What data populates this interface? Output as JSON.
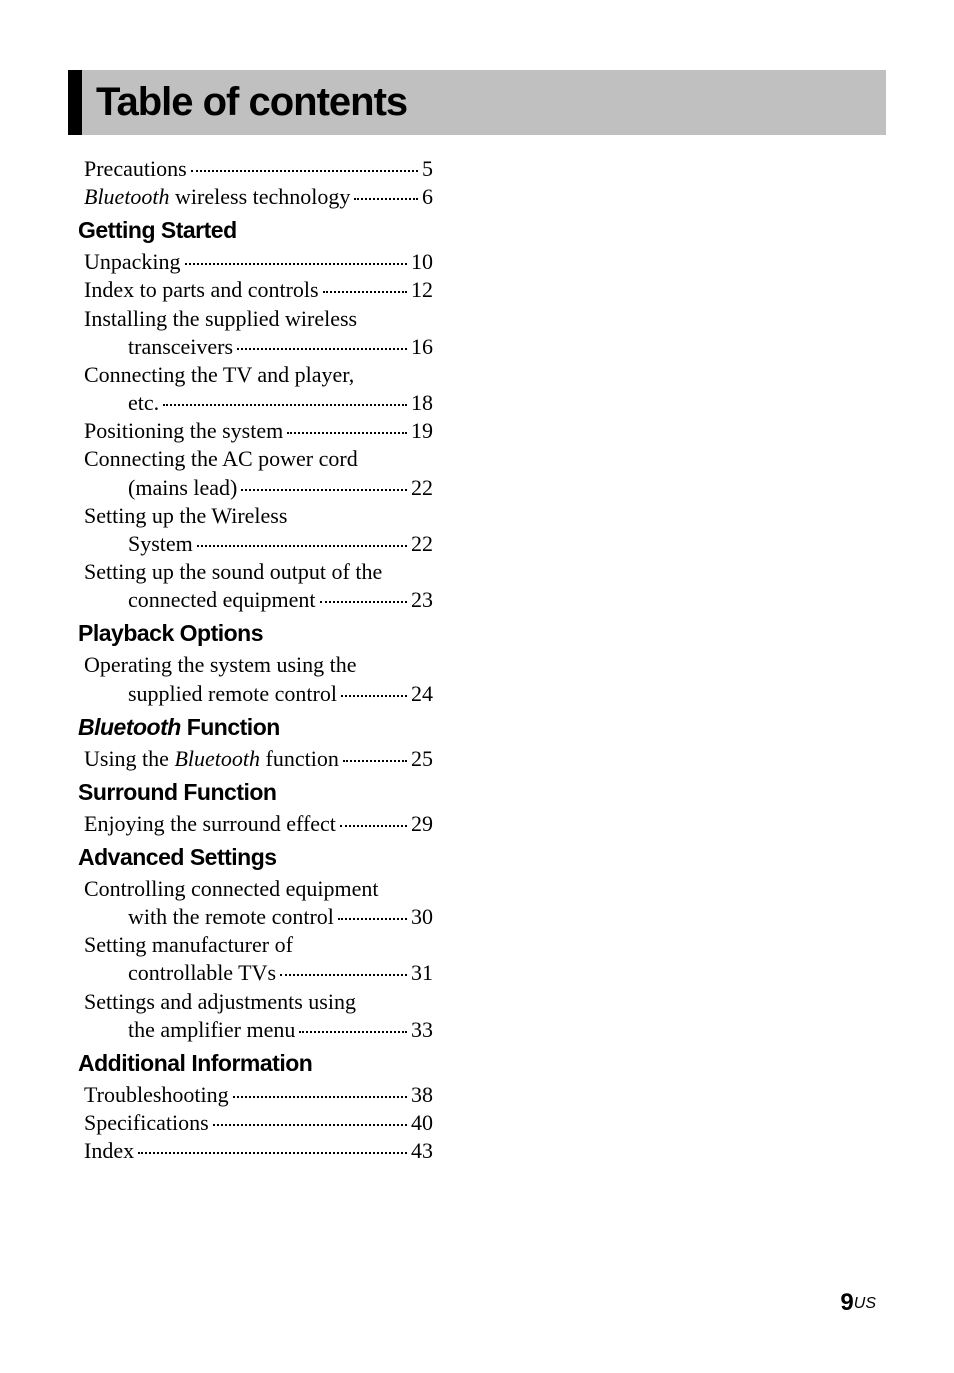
{
  "title": "Table of contents",
  "intro_entries": [
    {
      "parts": [
        {
          "t": "Precautions"
        }
      ],
      "page": "5",
      "indent": 0
    },
    {
      "parts": [
        {
          "t": "Bluetooth",
          "italic": true
        },
        {
          "t": " wireless technology"
        }
      ],
      "page": "6",
      "indent": 0
    }
  ],
  "sections": [
    {
      "heading_parts": [
        {
          "t": "Getting Started"
        }
      ],
      "entries": [
        {
          "parts": [
            {
              "t": "Unpacking"
            }
          ],
          "page": "10",
          "indent": 0
        },
        {
          "parts": [
            {
              "t": "Index to parts and controls"
            }
          ],
          "page": "12",
          "indent": 0
        },
        {
          "parts": [
            {
              "t": "Installing the supplied wireless"
            }
          ],
          "indent": 0
        },
        {
          "parts": [
            {
              "t": "transceivers"
            }
          ],
          "page": "16",
          "indent": 1
        },
        {
          "parts": [
            {
              "t": "Connecting the TV and player,"
            }
          ],
          "indent": 0
        },
        {
          "parts": [
            {
              "t": "etc."
            }
          ],
          "page": "18",
          "indent": 1
        },
        {
          "parts": [
            {
              "t": "Positioning the system"
            }
          ],
          "page": "19",
          "indent": 0
        },
        {
          "parts": [
            {
              "t": "Connecting the AC power cord"
            }
          ],
          "indent": 0
        },
        {
          "parts": [
            {
              "t": "(mains lead)"
            }
          ],
          "page": "22",
          "indent": 1
        },
        {
          "parts": [
            {
              "t": "Setting up the Wireless"
            }
          ],
          "indent": 0
        },
        {
          "parts": [
            {
              "t": "System"
            }
          ],
          "page": "22",
          "indent": 1
        },
        {
          "parts": [
            {
              "t": "Setting up the sound output of the"
            }
          ],
          "indent": 0
        },
        {
          "parts": [
            {
              "t": "connected equipment"
            }
          ],
          "page": "23",
          "indent": 1
        }
      ]
    },
    {
      "heading_parts": [
        {
          "t": "Playback Options"
        }
      ],
      "entries": [
        {
          "parts": [
            {
              "t": "Operating the system using the"
            }
          ],
          "indent": 0
        },
        {
          "parts": [
            {
              "t": "supplied remote control"
            }
          ],
          "page": "24",
          "indent": 1
        }
      ]
    },
    {
      "heading_parts": [
        {
          "t": "Bluetooth",
          "italic": true
        },
        {
          "t": " Function"
        }
      ],
      "entries": [
        {
          "parts": [
            {
              "t": "Using the "
            },
            {
              "t": "Bluetooth",
              "italic": true
            },
            {
              "t": " function"
            }
          ],
          "page": "25",
          "indent": 0
        }
      ]
    },
    {
      "heading_parts": [
        {
          "t": "Surround Function"
        }
      ],
      "entries": [
        {
          "parts": [
            {
              "t": "Enjoying the surround effect"
            }
          ],
          "page": "29",
          "indent": 0
        }
      ]
    },
    {
      "heading_parts": [
        {
          "t": "Advanced Settings"
        }
      ],
      "entries": [
        {
          "parts": [
            {
              "t": "Controlling connected equipment"
            }
          ],
          "indent": 0
        },
        {
          "parts": [
            {
              "t": "with the remote control"
            }
          ],
          "page": "30",
          "indent": 1
        },
        {
          "parts": [
            {
              "t": "Setting manufacturer of"
            }
          ],
          "indent": 0
        },
        {
          "parts": [
            {
              "t": "controllable TVs"
            }
          ],
          "page": "31",
          "indent": 1
        },
        {
          "parts": [
            {
              "t": "Settings and adjustments using"
            }
          ],
          "indent": 0
        },
        {
          "parts": [
            {
              "t": "the amplifier menu"
            }
          ],
          "page": "33",
          "indent": 1
        }
      ]
    },
    {
      "heading_parts": [
        {
          "t": "Additional Information"
        }
      ],
      "entries": [
        {
          "parts": [
            {
              "t": "Troubleshooting"
            }
          ],
          "page": "38",
          "indent": 0
        },
        {
          "parts": [
            {
              "t": "Specifications"
            }
          ],
          "page": "40",
          "indent": 0
        },
        {
          "parts": [
            {
              "t": "Index"
            }
          ],
          "page": "43",
          "indent": 0
        }
      ]
    }
  ],
  "footer": {
    "page_number": "9",
    "suffix": "US"
  },
  "colors": {
    "title_bg": "#c0c0c0",
    "title_border": "#000000",
    "text": "#000000",
    "page_bg": "#ffffff"
  },
  "typography": {
    "title_fontsize": 40,
    "section_fontsize": 23,
    "entry_fontsize": 22,
    "footer_num_fontsize": 24,
    "footer_suffix_fontsize": 16
  }
}
